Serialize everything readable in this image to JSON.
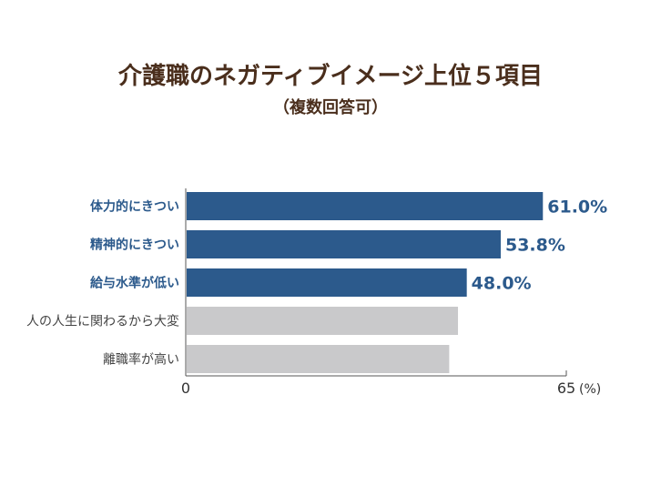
{
  "chart_data": {
    "type": "bar",
    "orientation": "horizontal",
    "title": "介護職のネガティブイメージ上位５項目",
    "subtitle": "（複数回答可）",
    "categories": [
      "体力的にきつい",
      "精神的にきつい",
      "給与水準が低い",
      "人の人生に関わるから大変",
      "離職率が高い"
    ],
    "values": [
      61.0,
      53.8,
      48.0,
      46.5,
      45.0
    ],
    "value_labels": [
      "61.0%",
      "53.8%",
      "48.0%",
      "",
      ""
    ],
    "highlighted": [
      true,
      true,
      true,
      false,
      false
    ],
    "xlim": [
      0,
      65
    ],
    "x_tick_labels": [
      "0",
      "65"
    ],
    "x_unit": "(%)",
    "grid": false,
    "colors": {
      "highlight": "#2c5a8c",
      "muted": "#c9c9cb",
      "title": "#4a2e1c",
      "axis": "#555555"
    }
  }
}
